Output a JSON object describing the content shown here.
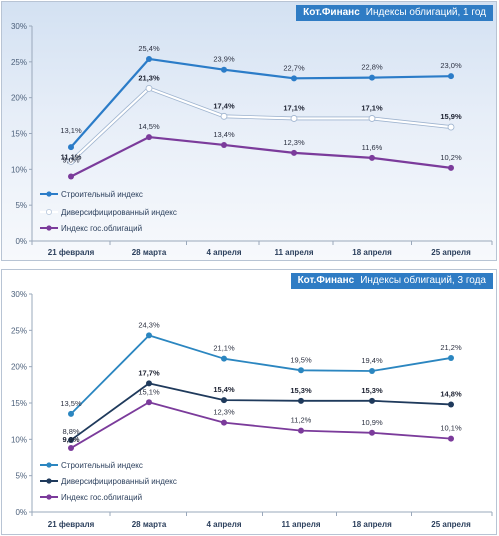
{
  "chart_data": [
    {
      "type": "line",
      "banner": {
        "brand": "Кот.Финанс",
        "title": "Индексы облигаций, 1 год"
      },
      "categories": [
        "21 февраля",
        "28 марта",
        "4 апреля",
        "11 апреля",
        "18 апреля",
        "25 апреля"
      ],
      "y_ticks": [
        "0%",
        "5%",
        "10%",
        "15%",
        "20%",
        "25%",
        "30%"
      ],
      "ylim": [
        0,
        30
      ],
      "grid": false,
      "legend_position": "bottom-left",
      "series": [
        {
          "name": "Строительный индекс",
          "color": "#2b7cc8",
          "values": [
            13.1,
            25.4,
            23.9,
            22.7,
            22.8,
            23.0
          ],
          "labels": [
            "13,1%",
            "25,4%",
            "23,9%",
            "22,7%",
            "22,8%",
            "23,0%"
          ],
          "bold": false
        },
        {
          "name": "Диверсифицированный индекс",
          "color": "#ffffff",
          "values": [
            11.1,
            21.3,
            17.4,
            17.1,
            17.1,
            15.9
          ],
          "labels": [
            "11,1%",
            "21,3%",
            "17,4%",
            "17,1%",
            "17,1%",
            "15,9%"
          ],
          "bold": true
        },
        {
          "name": "Индекс гос.облигаций",
          "color": "#7b3b9b",
          "values": [
            9.0,
            14.5,
            13.4,
            12.3,
            11.6,
            10.2
          ],
          "labels": [
            "9,0%",
            "14,5%",
            "13,4%",
            "12,3%",
            "11,6%",
            "10,2%"
          ],
          "bold": false
        }
      ]
    },
    {
      "type": "line",
      "banner": {
        "brand": "Кот.Финанс",
        "title": "Индексы облигаций, 3 года"
      },
      "categories": [
        "21 февраля",
        "28 марта",
        "4 апреля",
        "11 апреля",
        "18 апреля",
        "25 апреля"
      ],
      "y_ticks": [
        "0%",
        "5%",
        "10%",
        "15%",
        "20%",
        "25%",
        "30%"
      ],
      "ylim": [
        0,
        30
      ],
      "grid": false,
      "legend_position": "bottom-left",
      "series": [
        {
          "name": "Строительный индекс",
          "color": "#2b86c0",
          "values": [
            13.5,
            24.3,
            21.1,
            19.5,
            19.4,
            21.2
          ],
          "labels": [
            "13,5%",
            "24,3%",
            "21,1%",
            "19,5%",
            "19,4%",
            "21,2%"
          ],
          "bold": false
        },
        {
          "name": "Диверсифицированный индекс",
          "color": "#1f3a5c",
          "values": [
            9.9,
            17.7,
            15.4,
            15.3,
            15.3,
            14.8
          ],
          "labels": [
            "9,9%",
            "17,7%",
            "15,4%",
            "15,3%",
            "15,3%",
            "14,8%"
          ],
          "bold": true
        },
        {
          "name": "Индекс гос.облигаций",
          "color": "#7b3b9b",
          "values": [
            8.8,
            15.1,
            12.3,
            11.2,
            10.9,
            10.1
          ],
          "labels": [
            "8,8%",
            "15,1%",
            "12,3%",
            "11,2%",
            "10,9%",
            "10,1%"
          ],
          "bold": false
        }
      ]
    }
  ]
}
